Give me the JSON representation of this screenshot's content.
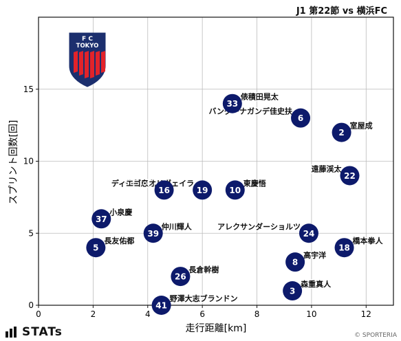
{
  "header": {
    "title": "J1 第22節 vs 横浜FC"
  },
  "footer": {
    "brand": "STATs",
    "credit": "© SPORTERIA"
  },
  "emblem": {
    "letters_top": "F   C",
    "letters_mid": "TOKYO"
  },
  "colors": {
    "marker": "#0d1a6b",
    "marker_text": "#ffffff",
    "grid": "#bbbbbb",
    "emblem_blue": "#1c2f6e",
    "emblem_red": "#e2232a"
  },
  "chart_data": {
    "type": "scatter",
    "title": "J1 第22節 vs 横浜FC",
    "xlabel": "走行距離[km]",
    "ylabel": "スプリント回数[回]",
    "xlim": [
      0,
      13
    ],
    "ylim": [
      0,
      20
    ],
    "xticks": [
      0,
      2,
      4,
      6,
      8,
      10,
      12
    ],
    "yticks": [
      0,
      5,
      10,
      15
    ],
    "grid": true,
    "points": [
      {
        "number": "33",
        "name": "俵積田晃太",
        "x": 7.1,
        "y": 14,
        "label_pos": "right"
      },
      {
        "number": "6",
        "name": "バングーナガンデ佳史扶",
        "x": 9.6,
        "y": 13,
        "label_pos": "left"
      },
      {
        "number": "2",
        "name": "室屋成",
        "x": 11.1,
        "y": 12,
        "label_pos": "right"
      },
      {
        "number": "22",
        "name": "遠藤渓太",
        "x": 11.4,
        "y": 9,
        "label_pos": "left"
      },
      {
        "number": "16",
        "name": "佐藤恵允",
        "x": 4.6,
        "y": 8,
        "label_pos": "left"
      },
      {
        "number": "19",
        "name": "ディエゴ・オリヴェイラ",
        "x": 6.0,
        "y": 8,
        "label_pos": "left"
      },
      {
        "number": "10",
        "name": "東慶悟",
        "x": 7.2,
        "y": 8,
        "label_pos": "right"
      },
      {
        "number": "37",
        "name": "小泉慶",
        "x": 2.3,
        "y": 6,
        "label_pos": "right"
      },
      {
        "number": "39",
        "name": "仲川輝人",
        "x": 4.2,
        "y": 5,
        "label_pos": "right"
      },
      {
        "number": "24",
        "name": "アレクサンダーショルツ",
        "x": 9.9,
        "y": 5,
        "label_pos": "left"
      },
      {
        "number": "5",
        "name": "長友佑都",
        "x": 2.1,
        "y": 4,
        "label_pos": "right"
      },
      {
        "number": "18",
        "name": "橋本拳人",
        "x": 11.2,
        "y": 4,
        "label_pos": "right"
      },
      {
        "number": "8",
        "name": "高宇洋",
        "x": 9.4,
        "y": 3,
        "label_pos": "right"
      },
      {
        "number": "26",
        "name": "長倉幹樹",
        "x": 5.2,
        "y": 2,
        "label_pos": "right"
      },
      {
        "number": "3",
        "name": "森重真人",
        "x": 9.3,
        "y": 1,
        "label_pos": "right"
      },
      {
        "number": "41",
        "name": "野澤大志ブランドン",
        "x": 4.5,
        "y": 0,
        "label_pos": "right"
      }
    ]
  }
}
